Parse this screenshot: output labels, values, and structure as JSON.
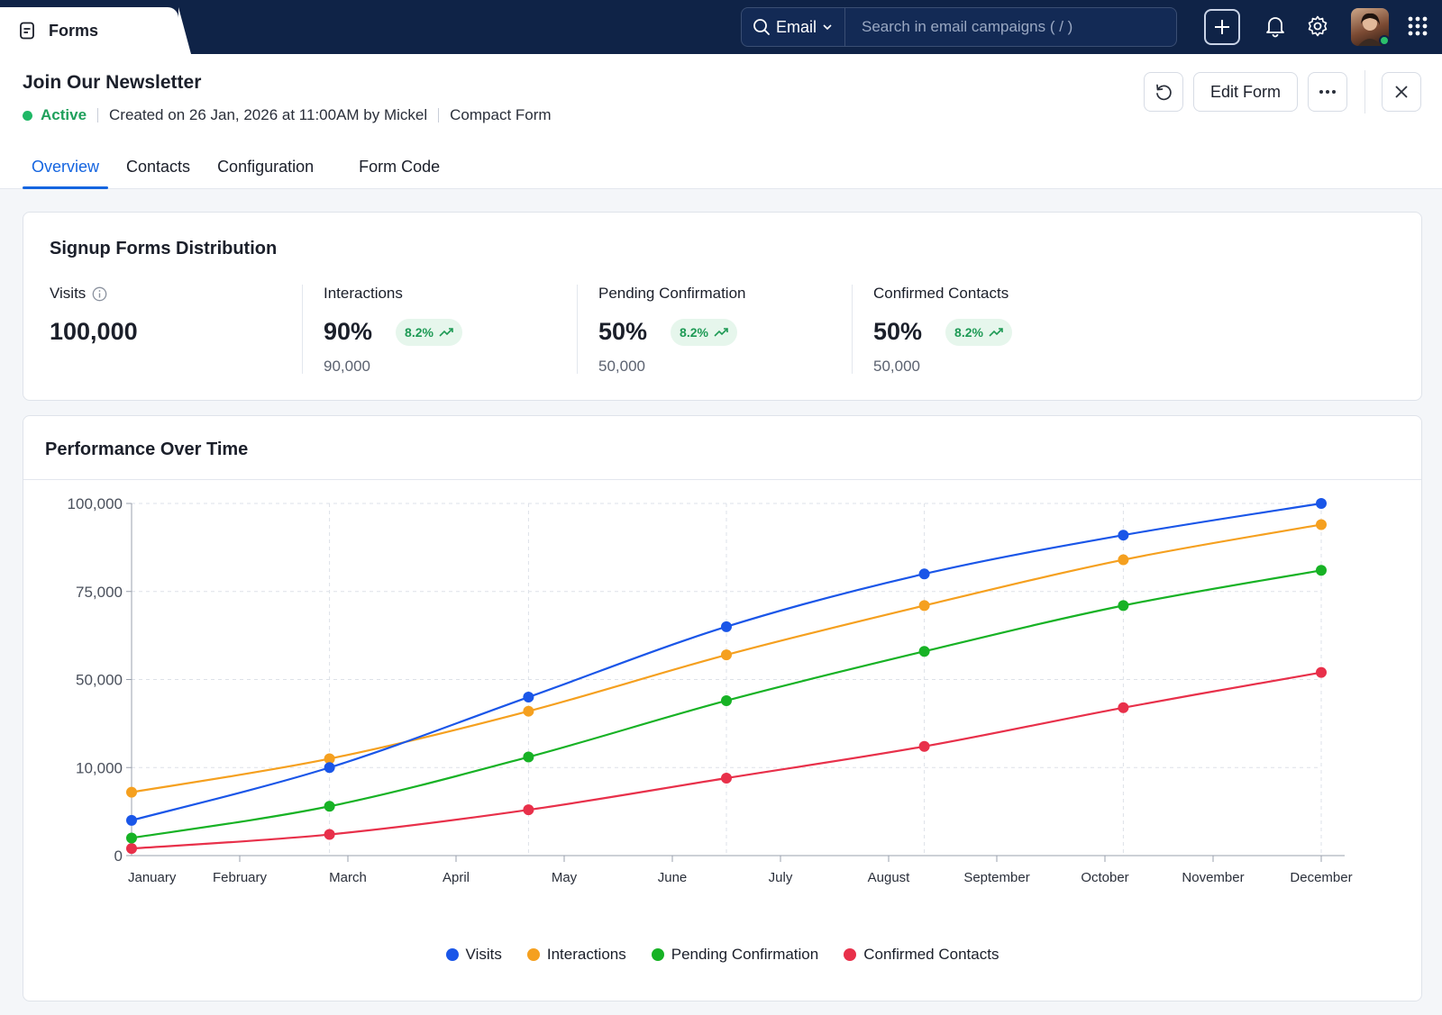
{
  "app": {
    "name": "Forms",
    "icon": "form-document-icon"
  },
  "search": {
    "scope": "Email",
    "placeholder": "Search in email campaigns ( / )"
  },
  "topbar_icons": [
    "plus-icon",
    "bell-icon",
    "gear-icon",
    "avatar",
    "apps-grid-icon"
  ],
  "header": {
    "title": "Join Our Newsletter",
    "status": "Active",
    "created": "Created on 26 Jan, 2026 at 11:00AM by Mickel",
    "form_type": "Compact Form",
    "edit_label": "Edit Form"
  },
  "tabs": [
    {
      "label": "Overview",
      "active": true
    },
    {
      "label": "Contacts",
      "active": false
    },
    {
      "label": "Configuration",
      "active": false
    },
    {
      "label": "Form Code",
      "active": false
    }
  ],
  "distribution": {
    "title": "Signup Forms Distribution",
    "stats": [
      {
        "label": "Visits",
        "value": "100,000",
        "info_icon": true
      },
      {
        "label": "Interactions",
        "value": "90%",
        "change": "8.2%",
        "sub": "90,000"
      },
      {
        "label": "Pending Confirmation",
        "value": "50%",
        "change": "8.2%",
        "sub": "50,000"
      },
      {
        "label": "Confirmed Contacts",
        "value": "50%",
        "change": "8.2%",
        "sub": "50,000"
      }
    ]
  },
  "performance": {
    "title": "Performance Over Time"
  },
  "colors": {
    "accent": "#1565e0",
    "visits": "#1a56e8",
    "interactions": "#f5a01f",
    "pending": "#17b225",
    "confirmed": "#e8304a"
  },
  "chart_data": {
    "type": "line",
    "x": [
      "January",
      "February",
      "March",
      "April",
      "May",
      "June",
      "July",
      "August",
      "September",
      "October",
      "November",
      "December"
    ],
    "yticks": [
      "0",
      "10,000",
      "50,000",
      "75,000",
      "100,000"
    ],
    "grid": true,
    "legend_position": "bottom-center",
    "series": [
      {
        "name": "Visits",
        "color": "#1a56e8",
        "points": [
          [
            0,
            10
          ],
          [
            1.83,
            25
          ],
          [
            3.67,
            45
          ],
          [
            5.5,
            65
          ],
          [
            7.33,
            80
          ],
          [
            9.17,
            91
          ],
          [
            11,
            100
          ]
        ]
      },
      {
        "name": "Interactions",
        "color": "#f5a01f",
        "points": [
          [
            0,
            18
          ],
          [
            1.83,
            27.5
          ],
          [
            3.67,
            41
          ],
          [
            5.5,
            57
          ],
          [
            7.33,
            71
          ],
          [
            9.17,
            84
          ],
          [
            11,
            94
          ]
        ]
      },
      {
        "name": "Pending Confirmation",
        "color": "#17b225",
        "points": [
          [
            0,
            5
          ],
          [
            1.83,
            14
          ],
          [
            3.67,
            28
          ],
          [
            5.5,
            44
          ],
          [
            7.33,
            58
          ],
          [
            9.17,
            71
          ],
          [
            11,
            81
          ]
        ]
      },
      {
        "name": "Confirmed Contacts",
        "color": "#e8304a",
        "points": [
          [
            0,
            2
          ],
          [
            1.83,
            6
          ],
          [
            3.67,
            13
          ],
          [
            5.5,
            22
          ],
          [
            7.33,
            31
          ],
          [
            9.17,
            42
          ],
          [
            11,
            52
          ]
        ]
      }
    ]
  }
}
